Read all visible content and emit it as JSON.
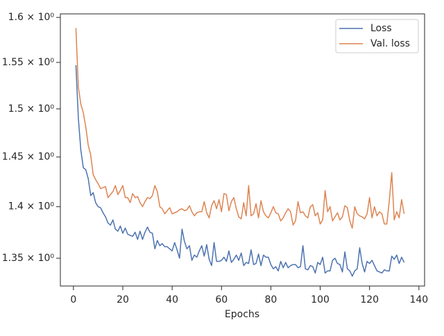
{
  "chart_data": {
    "type": "line",
    "xlabel": "Epochs",
    "log_y": true,
    "legend": "upper right",
    "x": [
      1,
      2,
      3,
      4,
      5,
      6,
      7,
      8,
      9,
      10,
      11,
      12,
      13,
      14,
      15,
      16,
      17,
      18,
      19,
      20,
      21,
      22,
      23,
      24,
      25,
      26,
      27,
      28,
      29,
      30,
      31,
      32,
      33,
      34,
      35,
      36,
      37,
      38,
      39,
      40,
      41,
      42,
      43,
      44,
      45,
      46,
      47,
      48,
      49,
      50,
      51,
      52,
      53,
      54,
      55,
      56,
      57,
      58,
      59,
      60,
      61,
      62,
      63,
      64,
      65,
      66,
      67,
      68,
      69,
      70,
      71,
      72,
      73,
      74,
      75,
      76,
      77,
      78,
      79,
      80,
      81,
      82,
      83,
      84,
      85,
      86,
      87,
      88,
      89,
      90,
      91,
      92,
      93,
      94,
      95,
      96,
      97,
      98,
      99,
      100,
      101,
      102,
      103,
      104,
      105,
      106,
      107,
      108,
      109,
      110,
      111,
      112,
      113,
      114,
      115,
      116,
      117,
      118,
      119,
      120,
      121,
      122,
      123,
      124,
      125,
      126,
      127,
      128,
      129,
      130,
      131,
      132,
      133,
      134
    ],
    "series": [
      {
        "name": "Loss",
        "color": "#4c72b0",
        "values": [
          1.547,
          1.49,
          1.457,
          1.439,
          1.437,
          1.428,
          1.411,
          1.414,
          1.404,
          1.4,
          1.399,
          1.394,
          1.39,
          1.384,
          1.382,
          1.387,
          1.378,
          1.376,
          1.381,
          1.374,
          1.379,
          1.373,
          1.372,
          1.371,
          1.375,
          1.368,
          1.376,
          1.368,
          1.375,
          1.38,
          1.375,
          1.374,
          1.359,
          1.367,
          1.362,
          1.364,
          1.361,
          1.361,
          1.359,
          1.357,
          1.365,
          1.358,
          1.35,
          1.378,
          1.366,
          1.359,
          1.362,
          1.348,
          1.353,
          1.351,
          1.357,
          1.362,
          1.352,
          1.363,
          1.349,
          1.343,
          1.365,
          1.347,
          1.347,
          1.348,
          1.351,
          1.347,
          1.357,
          1.346,
          1.349,
          1.353,
          1.348,
          1.355,
          1.343,
          1.346,
          1.345,
          1.358,
          1.344,
          1.345,
          1.354,
          1.343,
          1.353,
          1.351,
          1.351,
          1.344,
          1.34,
          1.342,
          1.338,
          1.347,
          1.341,
          1.346,
          1.341,
          1.343,
          1.344,
          1.344,
          1.341,
          1.342,
          1.362,
          1.34,
          1.339,
          1.343,
          1.342,
          1.336,
          1.346,
          1.344,
          1.351,
          1.336,
          1.338,
          1.338,
          1.348,
          1.35,
          1.345,
          1.344,
          1.337,
          1.356,
          1.34,
          1.338,
          1.333,
          1.338,
          1.34,
          1.36,
          1.345,
          1.337,
          1.347,
          1.345,
          1.348,
          1.343,
          1.338,
          1.337,
          1.336,
          1.339,
          1.338,
          1.338,
          1.352,
          1.349,
          1.353,
          1.345,
          1.351,
          1.346
        ]
      },
      {
        "name": "Val. loss",
        "color": "#dd8452",
        "values": [
          1.588,
          1.523,
          1.505,
          1.496,
          1.481,
          1.462,
          1.452,
          1.432,
          1.427,
          1.423,
          1.418,
          1.419,
          1.42,
          1.409,
          1.412,
          1.415,
          1.421,
          1.412,
          1.416,
          1.421,
          1.409,
          1.409,
          1.404,
          1.413,
          1.409,
          1.41,
          1.404,
          1.4,
          1.405,
          1.409,
          1.408,
          1.411,
          1.421,
          1.415,
          1.4,
          1.398,
          1.393,
          1.396,
          1.399,
          1.393,
          1.394,
          1.395,
          1.397,
          1.398,
          1.396,
          1.397,
          1.401,
          1.395,
          1.391,
          1.394,
          1.395,
          1.395,
          1.405,
          1.394,
          1.389,
          1.401,
          1.406,
          1.398,
          1.407,
          1.395,
          1.413,
          1.412,
          1.396,
          1.405,
          1.409,
          1.398,
          1.39,
          1.388,
          1.404,
          1.391,
          1.421,
          1.391,
          1.393,
          1.403,
          1.389,
          1.406,
          1.395,
          1.391,
          1.389,
          1.394,
          1.4,
          1.394,
          1.393,
          1.386,
          1.389,
          1.394,
          1.398,
          1.395,
          1.382,
          1.386,
          1.405,
          1.394,
          1.395,
          1.391,
          1.389,
          1.4,
          1.402,
          1.391,
          1.394,
          1.383,
          1.387,
          1.416,
          1.395,
          1.4,
          1.386,
          1.39,
          1.394,
          1.387,
          1.39,
          1.401,
          1.399,
          1.386,
          1.379,
          1.4,
          1.393,
          1.391,
          1.39,
          1.388,
          1.393,
          1.409,
          1.389,
          1.4,
          1.391,
          1.395,
          1.393,
          1.383,
          1.383,
          1.406,
          1.434,
          1.387,
          1.395,
          1.389,
          1.407,
          1.393
        ]
      }
    ],
    "xlim": [
      -5.3,
      142.3
    ],
    "xticks": [
      0,
      20,
      40,
      60,
      80,
      100,
      120,
      140
    ],
    "ylim": [
      1.3238,
      1.604
    ],
    "yticks": [
      {
        "value": 1.35,
        "label": "1.35 × 10⁰"
      },
      {
        "value": 1.4,
        "label": "1.4 × 10⁰"
      },
      {
        "value": 1.45,
        "label": "1.45 × 10⁰"
      },
      {
        "value": 1.5,
        "label": "1.5 × 10⁰"
      },
      {
        "value": 1.55,
        "label": "1.55 × 10⁰"
      },
      {
        "value": 1.6,
        "label": "1.6 × 10⁰"
      }
    ]
  }
}
